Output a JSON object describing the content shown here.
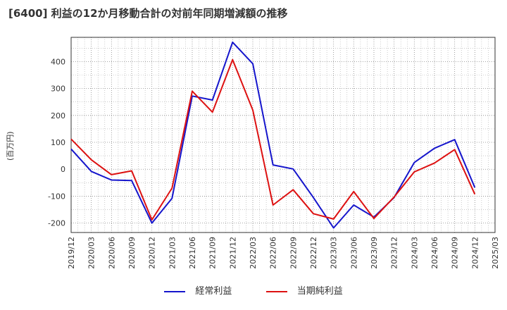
{
  "chart_data": {
    "type": "line",
    "title": "[6400]  利益の12か月移動合計の対前年同期増減額の推移",
    "ylabel": "(百万円)",
    "xlabel": "",
    "ylim": [
      -235,
      490
    ],
    "yticks": [
      -200,
      -100,
      0,
      100,
      200,
      300,
      400
    ],
    "categories": [
      "2019/12",
      "2020/03",
      "2020/06",
      "2020/09",
      "2020/12",
      "2021/03",
      "2021/06",
      "2021/09",
      "2021/12",
      "2022/03",
      "2022/06",
      "2022/09",
      "2022/12",
      "2023/03",
      "2023/06",
      "2023/09",
      "2023/12",
      "2024/03",
      "2024/06",
      "2024/09",
      "2024/12",
      "2025/03"
    ],
    "series": [
      {
        "name": "経常利益",
        "color": "#1515cc",
        "values": [
          75,
          -8,
          -40,
          -42,
          -200,
          -108,
          272,
          257,
          472,
          392,
          16,
          1,
          -105,
          -218,
          -133,
          -178,
          -105,
          25,
          78,
          110,
          -68,
          null
        ]
      },
      {
        "name": "当期純利益",
        "color": "#dd1111",
        "values": [
          112,
          35,
          -20,
          -6,
          -188,
          -70,
          290,
          212,
          407,
          220,
          -133,
          -76,
          -165,
          -185,
          -83,
          -183,
          -103,
          -10,
          23,
          73,
          -93,
          null
        ]
      }
    ],
    "grid": true,
    "legend": "bottom"
  }
}
